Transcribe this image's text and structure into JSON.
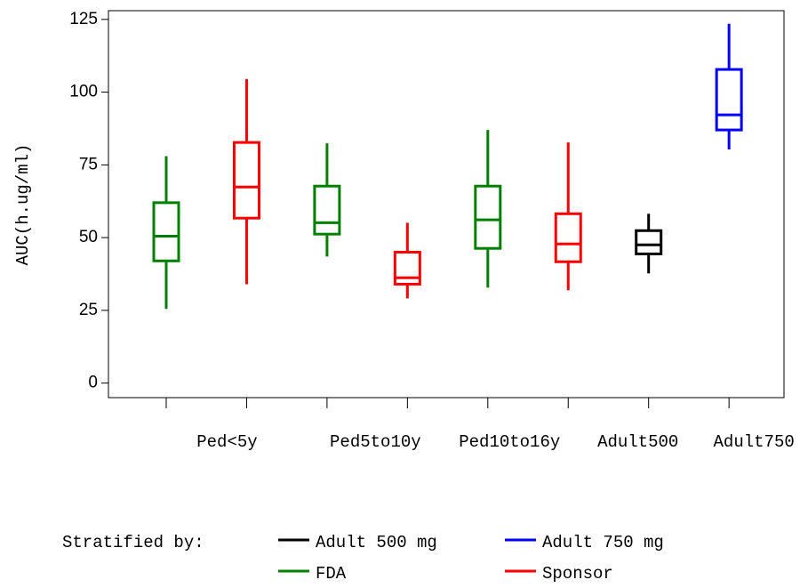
{
  "chart_data": {
    "type": "box",
    "y_label": "AUC(h.ug/ml)",
    "categories": [
      null,
      "Ped<5y",
      null,
      "Ped5to10y",
      null,
      "Ped10to16y",
      "Adult500",
      "Adult750"
    ],
    "ylim": [
      -5,
      128
    ],
    "yticks": [
      0,
      25,
      50,
      75,
      100,
      125
    ],
    "legend_title": "Stratified by:",
    "series": [
      {
        "name": "Adult 500 mg",
        "color": "#000000",
        "values": [
          null,
          null,
          null,
          null,
          null,
          null,
          {
            "min": 37.7,
            "q1": 44.4,
            "median": 47.5,
            "q3": 52.4,
            "max": 58.2
          },
          null
        ]
      },
      {
        "name": "Adult 750 mg",
        "color": "#0000ff",
        "values": [
          null,
          null,
          null,
          null,
          null,
          null,
          null,
          {
            "min": 80.3,
            "q1": 87,
            "median": 92.2,
            "q3": 107.8,
            "max": 123.5
          }
        ]
      },
      {
        "name": "FDA",
        "color": "#008000",
        "values": [
          {
            "min": 25.5,
            "q1": 42,
            "median": 50.5,
            "q3": 62,
            "max": 78
          },
          null,
          {
            "min": 43.5,
            "q1": 51.2,
            "median": 55.1,
            "q3": 67.7,
            "max": 82.4
          },
          null,
          {
            "min": 32.8,
            "q1": 46.3,
            "median": 56.1,
            "q3": 67.7,
            "max": 87
          },
          null,
          null,
          null
        ]
      },
      {
        "name": "Sponsor",
        "color": "#ff0000",
        "values": [
          null,
          {
            "min": 34,
            "q1": 56.7,
            "median": 67.4,
            "q3": 82.7,
            "max": 104.5
          },
          null,
          {
            "min": 29.1,
            "q1": 34,
            "median": 36.2,
            "q3": 45,
            "max": 55.1
          },
          null,
          {
            "min": 31.9,
            "q1": 41.7,
            "median": 47.8,
            "q3": 58.2,
            "max": 82.7
          },
          null,
          null
        ]
      }
    ]
  }
}
